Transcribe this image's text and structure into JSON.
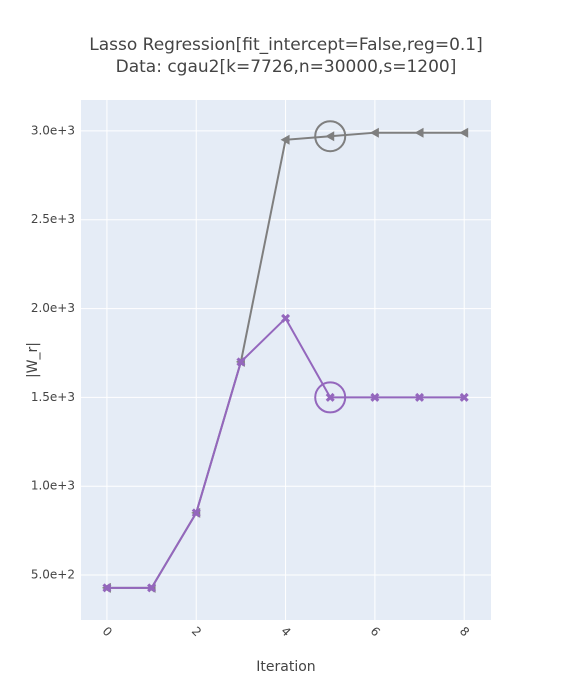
{
  "chart_data": {
    "type": "line",
    "title": "Lasso Regression[fit_intercept=False,reg=0.1]",
    "subtitle": "Data: cgau2[k=7726,n=30000,s=1200]",
    "x_label": "Iteration",
    "y_label": "|W_r|",
    "x": [
      0,
      1,
      2,
      3,
      4,
      5,
      6,
      7,
      8
    ],
    "series": [
      {
        "color": "#7f7f7f",
        "marker": "triangle-left",
        "highlight": 5,
        "values": [
          428,
          428,
          850,
          1700,
          2950,
          2970,
          2990,
          2990,
          2990
        ]
      },
      {
        "color": "#9467bd",
        "marker": "x",
        "highlight": 5,
        "values": [
          428,
          428,
          850,
          1700,
          1945,
          1500,
          1500,
          1500,
          1500
        ]
      }
    ],
    "xlim": [
      -0.58,
      8.6
    ],
    "xticks": [
      0,
      2,
      4,
      6,
      8
    ],
    "ylim": [
      247,
      3174
    ],
    "yticks": [
      {
        "value": 500,
        "label": "5.0e+2"
      },
      {
        "value": 1000,
        "label": "1.0e+3"
      },
      {
        "value": 1500,
        "label": "1.5e+3"
      },
      {
        "value": 2000,
        "label": "2.0e+3"
      },
      {
        "value": 2500,
        "label": "2.5e+3"
      },
      {
        "value": 3000,
        "label": "3.0e+3"
      }
    ],
    "grid": true
  }
}
